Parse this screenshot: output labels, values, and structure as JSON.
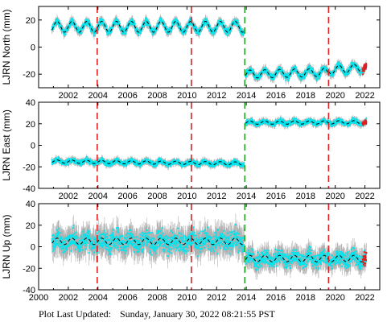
{
  "footer": {
    "prefix": "Plot Last Updated:",
    "timestamp": "Sunday, January 30, 2022 08:21:55 PST"
  },
  "colors": {
    "data": "#00e5ee",
    "error_bars": "#b0b0b0",
    "model": "#000000",
    "recent": "#e02020",
    "offset_line": "#e02020",
    "antenna_line": "#22aa22"
  },
  "chart_data": [
    {
      "type": "scatter",
      "ylabel": "LJRN North (mm)",
      "xlim": [
        2000,
        2023
      ],
      "ylim": [
        -30,
        30
      ],
      "xticks": [
        2002,
        2004,
        2006,
        2008,
        2010,
        2012,
        2014,
        2016,
        2018,
        2020,
        2022
      ],
      "yticks": [
        20,
        0,
        -20
      ],
      "series": [
        {
          "segments": [
            {
              "x_start": 2000.9,
              "x_end": 2013.85,
              "baseline": 15,
              "seasonal_amplitude": 4,
              "scatter": 2
            },
            {
              "x_start": 2013.95,
              "x_end": 2019.55,
              "baseline": -20,
              "seasonal_amplitude": 3,
              "scatter": 2,
              "slope": 0.25
            },
            {
              "x_start": 2019.55,
              "x_end": 2022.1,
              "baseline": -17,
              "seasonal_amplitude": 3,
              "scatter": 2,
              "slope": 0.8
            }
          ]
        }
      ],
      "offsets_red": [
        2003.95,
        2010.3,
        2019.55
      ],
      "offsets_green": [
        2013.9
      ]
    },
    {
      "type": "scatter",
      "ylabel": "LJRN East (mm)",
      "xlim": [
        2000,
        2023
      ],
      "ylim": [
        -40,
        40
      ],
      "xticks": [
        2002,
        2004,
        2006,
        2008,
        2010,
        2012,
        2014,
        2016,
        2018,
        2020,
        2022
      ],
      "yticks": [
        40,
        20,
        0,
        -20,
        -40
      ],
      "series": [
        {
          "segments": [
            {
              "x_start": 2000.9,
              "x_end": 2013.85,
              "baseline": -15,
              "seasonal_amplitude": 1.5,
              "scatter": 2,
              "slope": -0.15
            },
            {
              "x_start": 2013.95,
              "x_end": 2022.1,
              "baseline": 21,
              "seasonal_amplitude": 1.5,
              "scatter": 2,
              "slope": 0.05
            }
          ]
        }
      ],
      "offsets_red": [
        2003.95,
        2010.3,
        2019.55
      ],
      "offsets_green": [
        2013.9
      ]
    },
    {
      "type": "scatter",
      "ylabel": "LJRN Up (mm)",
      "xlim": [
        2000,
        2023
      ],
      "ylim": [
        -40,
        40
      ],
      "xticks": [
        2000,
        2002,
        2004,
        2006,
        2008,
        2010,
        2012,
        2014,
        2016,
        2018,
        2020,
        2022
      ],
      "yticks": [
        40,
        20,
        0,
        -20,
        -40
      ],
      "series": [
        {
          "segments": [
            {
              "x_start": 2000.9,
              "x_end": 2013.85,
              "baseline": 5,
              "seasonal_amplitude": 3,
              "scatter": 8
            },
            {
              "x_start": 2013.95,
              "x_end": 2022.1,
              "baseline": -11,
              "seasonal_amplitude": 3,
              "scatter": 6
            }
          ]
        }
      ],
      "offsets_red": [
        2003.95,
        2010.3,
        2019.55
      ],
      "offsets_green": [
        2013.9
      ]
    }
  ]
}
